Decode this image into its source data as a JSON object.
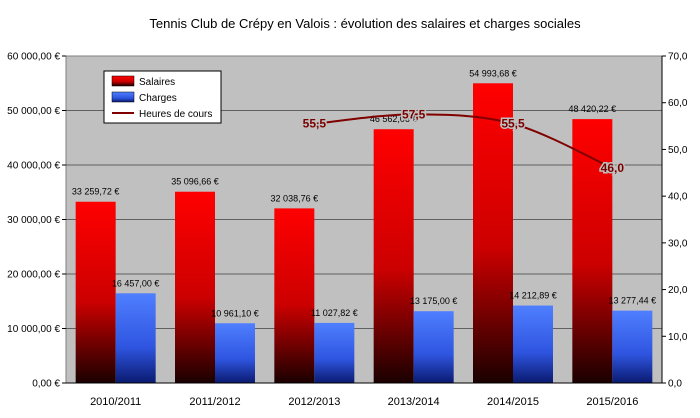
{
  "chart_data": {
    "type": "bar",
    "title": "Tennis Club de Crépy en Valois : évolution des salaires et charges sociales",
    "categories": [
      "2010/2011",
      "2011/2012",
      "2012/2013",
      "2013/2014",
      "2014/2015",
      "2015/2016"
    ],
    "series": [
      {
        "name": "Salaires",
        "type": "bar",
        "axis": "left",
        "color": "#ff0000",
        "values": [
          33259.72,
          35096.66,
          32038.76,
          46562.06,
          54993.68,
          48420.22
        ],
        "labels": [
          "33 259,72 €",
          "35 096,66 €",
          "32 038,76 €",
          "46 562,06 €",
          "54 993,68 €",
          "48 420,22 €"
        ]
      },
      {
        "name": "Charges",
        "type": "bar",
        "axis": "left",
        "color": "#3366ff",
        "values": [
          16457.0,
          10961.1,
          11027.82,
          13175.0,
          14212.89,
          13277.44
        ],
        "labels": [
          "16 457,00 €",
          "10 961,10 €",
          "11 027,82 €",
          "13 175,00 €",
          "14 212,89 €",
          "13 277,44 €"
        ]
      },
      {
        "name": "Heures de cours",
        "type": "line",
        "axis": "right",
        "color": "#800000",
        "x": [
          "2012/2013",
          "2013/2014",
          "2014/2015",
          "2015/2016"
        ],
        "values": [
          55.5,
          57.5,
          55.5,
          46.0
        ],
        "labels": [
          "55,5",
          "57,5",
          "55,5",
          "46,0"
        ]
      }
    ],
    "yleft": {
      "ylim": [
        0,
        60000
      ],
      "ticks": [
        0,
        10000,
        20000,
        30000,
        40000,
        50000,
        60000
      ],
      "tick_labels": [
        "0,00 €",
        "10 000,00 €",
        "20 000,00 €",
        "30 000,00 €",
        "40 000,00 €",
        "50 000,00 €",
        "60 000,00 €"
      ]
    },
    "yright": {
      "ylim": [
        0,
        70
      ],
      "ticks": [
        0,
        10,
        20,
        30,
        40,
        50,
        60,
        70
      ],
      "tick_labels": [
        "0,0",
        "10,0",
        "20,0",
        "30,0",
        "40,0",
        "50,0",
        "60,0",
        "70,0"
      ]
    },
    "grid": true,
    "legend_position": "top-left",
    "plot_background": "#c0c0c0"
  }
}
